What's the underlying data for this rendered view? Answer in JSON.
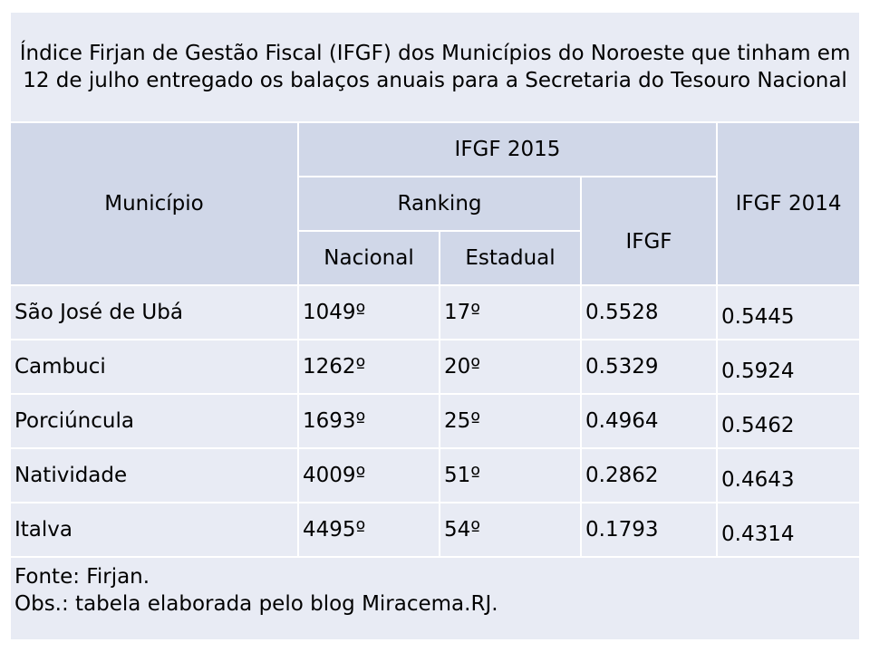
{
  "title": "Índice Firjan de Gestão Fiscal (IFGF) dos Municípios do Noroeste que tinham em 12 de julho entregado os balaços anuais para a Secretaria do Tesouro Nacional",
  "headers": {
    "municipio": "Município",
    "ifgf2015": "IFGF 2015",
    "ranking": "Ranking",
    "ifgf": "IFGF",
    "ifgf2014": "IFGF 2014",
    "nacional": "Nacional",
    "estadual": "Estadual"
  },
  "rows": [
    {
      "municipio": "São José de Ubá",
      "nacional": "1049º",
      "estadual": "17º",
      "ifgf": "0.5528",
      "ifgf2014": "0.5445"
    },
    {
      "municipio": "Cambuci",
      "nacional": "1262º",
      "estadual": "20º",
      "ifgf": "0.5329",
      "ifgf2014": "0.5924"
    },
    {
      "municipio": "Porciúncula",
      "nacional": "1693º",
      "estadual": "25º",
      "ifgf": "0.4964",
      "ifgf2014": "0.5462"
    },
    {
      "municipio": "Natividade",
      "nacional": "4009º",
      "estadual": "51º",
      "ifgf": "0.2862",
      "ifgf2014": "0.4643"
    },
    {
      "municipio": "Italva",
      "nacional": "4495º",
      "estadual": "54º",
      "ifgf": "0.1793",
      "ifgf2014": "0.4314"
    }
  ],
  "footer": {
    "source": "Fonte: Firjan.",
    "note": "Obs.: tabela elaborada pelo blog Miracema.RJ."
  }
}
